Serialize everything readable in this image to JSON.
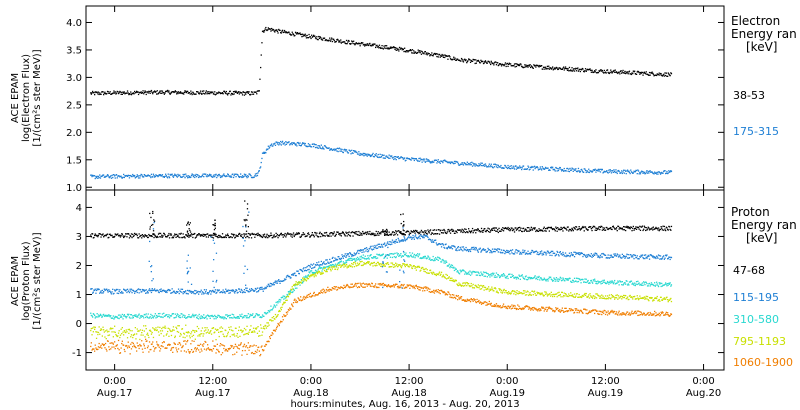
{
  "chart_data": [
    {
      "type": "scatter",
      "panel": "electron",
      "ylabel_lines": [
        "ACE EPAM",
        "log(Electron Flux)",
        "[1/(cm²s ster MeV)]"
      ],
      "ylim": [
        0.95,
        4.3
      ],
      "yticks": [
        "1.0",
        "1.5",
        "2.0",
        "2.5",
        "3.0",
        "3.5",
        "4.0"
      ],
      "yticks_values": [
        1.0,
        1.5,
        2.0,
        2.5,
        3.0,
        3.5,
        4.0
      ],
      "legend_title": [
        "Electron",
        "Energy ran",
        "[keV]"
      ],
      "series": [
        {
          "name": "38-53",
          "color": "#000000",
          "x": [
            -3,
            0,
            6,
            12,
            17,
            17.6,
            18,
            18.5,
            20,
            24,
            30,
            36,
            40,
            42,
            48,
            60,
            68
          ],
          "y": [
            2.72,
            2.73,
            2.74,
            2.73,
            2.72,
            2.75,
            3.85,
            3.9,
            3.85,
            3.75,
            3.62,
            3.5,
            3.4,
            3.33,
            3.24,
            3.12,
            3.06
          ]
        },
        {
          "name": "175-315",
          "color": "#1e7fd4",
          "x": [
            -3,
            0,
            6,
            12,
            17,
            17.6,
            18,
            19,
            20,
            24,
            30,
            36,
            42,
            48,
            60,
            68
          ],
          "y": [
            1.2,
            1.21,
            1.22,
            1.22,
            1.22,
            1.28,
            1.6,
            1.78,
            1.82,
            1.78,
            1.62,
            1.52,
            1.45,
            1.38,
            1.3,
            1.28
          ]
        }
      ]
    },
    {
      "type": "scatter",
      "panel": "proton",
      "ylabel_lines": [
        "ACE EPAM",
        "log(Proton Flux)",
        "[1/(cm²s ster MeV)]"
      ],
      "ylim": [
        -1.6,
        4.6
      ],
      "yticks": [
        "-1",
        "0",
        "1",
        "2",
        "3",
        "4"
      ],
      "yticks_values": [
        -1,
        0,
        1,
        2,
        3,
        4
      ],
      "legend_title": [
        "Proton",
        "Energy ran",
        "[keV]"
      ],
      "series": [
        {
          "name": "47-68",
          "color": "#000000",
          "x": [
            -3,
            0,
            6,
            12,
            18,
            24,
            30,
            36,
            42,
            48,
            60,
            68
          ],
          "y": [
            3.05,
            3.05,
            3.05,
            3.05,
            3.05,
            3.08,
            3.12,
            3.15,
            3.2,
            3.25,
            3.3,
            3.3
          ]
        },
        {
          "name": "115-195",
          "color": "#1e7fd4",
          "x": [
            -3,
            0,
            6,
            12,
            18,
            21,
            24,
            30,
            36,
            38,
            40,
            42,
            48,
            60,
            68
          ],
          "y": [
            1.15,
            1.12,
            1.15,
            1.1,
            1.2,
            1.6,
            2.0,
            2.5,
            3.0,
            3.0,
            2.7,
            2.6,
            2.5,
            2.35,
            2.3
          ]
        },
        {
          "name": "310-580",
          "color": "#28d8d0",
          "x": [
            -3,
            0,
            6,
            12,
            18,
            21,
            24,
            30,
            36,
            40,
            42,
            48,
            60,
            68
          ],
          "y": [
            0.3,
            0.25,
            0.3,
            0.25,
            0.3,
            1.0,
            1.8,
            2.3,
            2.4,
            2.2,
            1.8,
            1.65,
            1.45,
            1.35
          ]
        },
        {
          "name": "795-1193",
          "color": "#c8e000",
          "x": [
            -3,
            0,
            6,
            12,
            18,
            20,
            22,
            26,
            30,
            36,
            40,
            42,
            48,
            60,
            68
          ],
          "y": [
            -0.25,
            -0.3,
            -0.25,
            -0.3,
            -0.2,
            0.4,
            1.4,
            1.9,
            2.1,
            2.0,
            1.7,
            1.4,
            1.1,
            0.95,
            0.85
          ]
        },
        {
          "name": "1060-1900",
          "color": "#f07e00",
          "x": [
            -3,
            0,
            6,
            12,
            18,
            20,
            22,
            26,
            30,
            36,
            40,
            42,
            48,
            60,
            68
          ],
          "y": [
            -0.75,
            -0.8,
            -0.75,
            -0.8,
            -0.9,
            0.0,
            0.8,
            1.2,
            1.35,
            1.3,
            1.1,
            0.9,
            0.6,
            0.4,
            0.35
          ]
        }
      ],
      "spikes": [
        {
          "x": 4.5,
          "y": 4.0
        },
        {
          "x": 9.0,
          "y": 3.6
        },
        {
          "x": 12.0,
          "y": 3.6
        },
        {
          "x": 16.0,
          "y": 4.3
        },
        {
          "x": 33.0,
          "y": 3.3
        },
        {
          "x": 35.0,
          "y": 3.8
        }
      ]
    }
  ],
  "x_axis": {
    "xlim": [
      -3.5,
      74.5
    ],
    "ticks": [
      {
        "t": 0,
        "time": "0:00",
        "date": "Aug.17"
      },
      {
        "t": 12,
        "time": "12:00",
        "date": "Aug.17"
      },
      {
        "t": 24,
        "time": "0:00",
        "date": "Aug.18"
      },
      {
        "t": 36,
        "time": "12:00",
        "date": "Aug.18"
      },
      {
        "t": 48,
        "time": "0:00",
        "date": "Aug.19"
      },
      {
        "t": 60,
        "time": "12:00",
        "date": "Aug.19"
      },
      {
        "t": 72,
        "time": "0:00",
        "date": "Aug.20"
      }
    ],
    "xlabel": "hours:minutes, Aug. 16, 2013 - Aug. 20, 2013"
  }
}
